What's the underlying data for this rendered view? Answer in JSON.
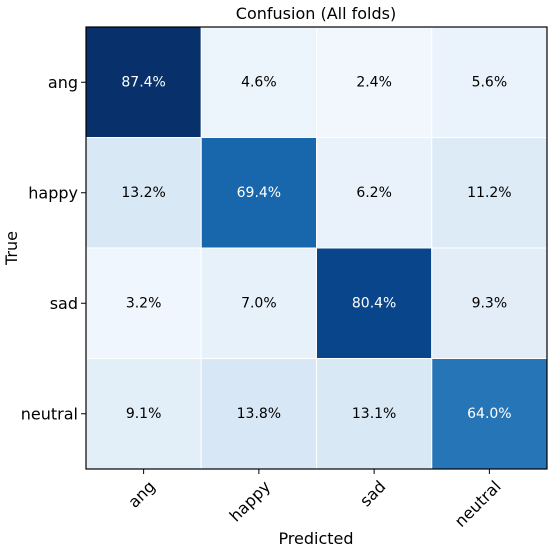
{
  "chart_data": {
    "type": "heatmap",
    "title": "Confusion (All folds)",
    "xlabel": "Predicted",
    "ylabel": "True",
    "x_categories": [
      "ang",
      "happy",
      "sad",
      "neutral"
    ],
    "y_categories": [
      "ang",
      "happy",
      "sad",
      "neutral"
    ],
    "values": [
      [
        87.4,
        4.6,
        2.4,
        5.6
      ],
      [
        13.2,
        69.4,
        6.2,
        11.2
      ],
      [
        3.2,
        7.0,
        80.4,
        9.3
      ],
      [
        9.1,
        13.8,
        13.1,
        64.0
      ]
    ],
    "cell_labels": [
      [
        "87.4%",
        "4.6%",
        "2.4%",
        "5.6%"
      ],
      [
        "13.2%",
        "69.4%",
        "6.2%",
        "11.2%"
      ],
      [
        "3.2%",
        "7.0%",
        "80.4%",
        "9.3%"
      ],
      [
        "9.1%",
        "13.8%",
        "13.1%",
        "64.0%"
      ]
    ],
    "colormap": "Blues",
    "color_low": "#f7fbff",
    "color_high": "#08306b",
    "value_range": [
      0,
      87.4
    ],
    "grid": false,
    "legend": "none"
  }
}
